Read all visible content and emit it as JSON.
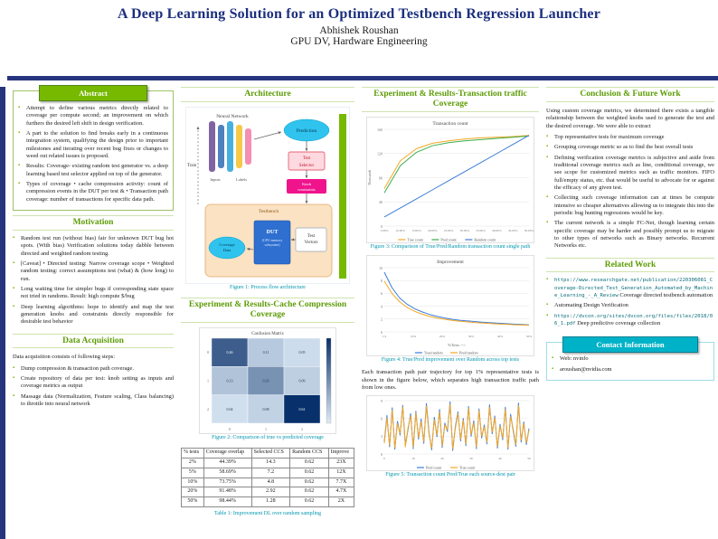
{
  "header": {
    "title": "A Deep Learning Solution for an Optimized Testbench Regression Launcher",
    "author": "Abhishek Roushan",
    "affiliation": "GPU DV, Hardware Engineering"
  },
  "colors": {
    "accent_green": "#76b900",
    "navy": "#27357e",
    "teal": "#00b2c8",
    "caption_teal": "#0096ae"
  },
  "abstract": {
    "title": "Abstract",
    "items": [
      "Attempt to define various metrics directly related to coverage per compute second; an improvement on which furthers the desired left shift in design verification.",
      "A part to the solution to find breaks early in a continuous integration system, qualifying the design prior to important milestones and iterating over recent bug fixes or changes to weed out related issues is proposed.",
      "Results: Coverage- existing random test generator vs. a deep learning based test selector applied on top of the generator.",
      "Types of coverage • cache compression activity: count of compression events in the DUT per test & • Transaction path coverage: number of transactions for specific data path."
    ]
  },
  "motivation": {
    "title": "Motivation",
    "items": [
      "Random test run (without bias) fair for unknown DUT bug hot spots. (With bias) Verification solutions today dabble between directed and weighted random testing.",
      "[Caveat] • Directed testing: Narrow coverage scope • Weighted random testing: correct assumptions test (what) & (how long) to run.",
      "Long waiting time for simpler bugs if corresponding state space not tried in randoms. Result: high compute $/bug",
      "Deep learning algorithms: hope to identify and map the test generation knobs and constraints directly responsible for desirable test behavior"
    ]
  },
  "data_acquisition": {
    "title": "Data Acquisition",
    "intro": "Data acquisition consists of following steps:",
    "items": [
      "Dump compression & transaction path coverage.",
      "Create repository of data per test: knob setting as inputs and coverage metrics as output",
      "Massage data (Normalization, Feature scaling, Class balancing) to throttle into neural network"
    ]
  },
  "architecture": {
    "title": "Architecture",
    "caption": "Figure 1: Process flow architecture",
    "diagram": {
      "nn_label": "Neural Network",
      "prediction": "Prediction",
      "test_selector_1": "Test",
      "test_selector_2": "Selector",
      "knob_1": "Knob",
      "knob_2": "constraints",
      "train": "Train",
      "testbench": "Testbench",
      "coverage_1": "Coverage",
      "coverage_2": "Data",
      "dut": "DUT",
      "dut_sub1": "(GPU memory",
      "dut_sub2": "subsystem)",
      "vectors_1": "Test",
      "vectors_2": "Vectors",
      "inputs": "Inputs",
      "labels": "Labels"
    }
  },
  "cache_results": {
    "title": "Experiment & Results-Cache Compression Coverage",
    "figure_caption": "Figure 2: Comparison of true vs predicted coverage",
    "table": {
      "caption": "Table 1: Improvement DL over random sampling",
      "headers": [
        "% tests",
        "Coverage overlap",
        "Selected CCS",
        "Random CCS",
        "Improve"
      ],
      "rows": [
        [
          "2%",
          "44.39%",
          "14.3",
          "0.62",
          "23X"
        ],
        [
          "5%",
          "58.69%",
          "7.2",
          "0.62",
          "12X"
        ],
        [
          "10%",
          "73.75%",
          "4.8",
          "0.62",
          "7.7X"
        ],
        [
          "20%",
          "91.48%",
          "2.92",
          "0.62",
          "4.7X"
        ],
        [
          "50%",
          "98.44%",
          "1.28",
          "0.62",
          "2X"
        ]
      ]
    }
  },
  "transaction_results": {
    "title": "Experiment & Results-Transaction traffic Coverage",
    "fig3_caption": "Figure 3: Comparison of True/Pred/Random transaction count single path",
    "fig4_caption": "Figure 4: True/Pred improvement over Random across top tests",
    "paragraph": "Each transaction path pair trajectory for top 1% representative tests is shown in the figure below, which separates high transaction traffic path from low ones.",
    "fig5_caption": "Figure 5: Transaction count Pred/True each source-dest pair"
  },
  "conclusion": {
    "title": "Conclusion & Future Work",
    "intro": "Using custom coverage metrics, we determined there exists a tangible relationship between the weighted knobs used to generate the test and the desired coverage. We were able to extract",
    "items": [
      "Top representative tests for maximum coverage",
      "Grouping coverage metric so as to find the best overall tests",
      "Defining verification coverage metrics is subjective and aside from traditional coverage metrics such as line, conditional coverage, we see scope for customized metrics such as traffic monitors. FIFO full/empty status, etc. that would be useful to advocate for or against the efficacy of any given test.",
      "Collecting such coverage information can at times be compute intensive so cheaper alternatives allowing us to integrate this into the periodic bug hunting regressions would be key.",
      "The current network is a simple FC-Net, though learning certain specific coverage may be harder and possibly prompt us to migrate to other types of networks such as Binary networks. Recurrent Networks etc."
    ]
  },
  "related_work": {
    "title": "Related Work",
    "items": [
      {
        "link": "https://www.researchgate.net/publication/220306081_Coverage-Directed_Test_Generation_Automated_by_Machine_Learning_-_A_Review",
        "text": "Coverage directed testbench automation"
      },
      {
        "link": "",
        "text": "Automating Design Verification"
      },
      {
        "link": "https://dvcon.org/sites/dvcon.org/files/files/2018/06_1.pdf",
        "text": "Deep predictive coverage collection"
      }
    ]
  },
  "contact": {
    "title": "Contact Information",
    "items": [
      "Web: nvinfo",
      "aroushan@nvidia.com"
    ]
  },
  "chart_data": [
    {
      "id": "fig2",
      "type": "heatmap",
      "title": "Confusion Matrix",
      "x_ticks": [
        "0",
        "1",
        "2"
      ],
      "y_ticks": [
        "0",
        "1",
        "2"
      ],
      "values": [
        [
          0.46,
          0.11,
          0.05
        ],
        [
          0.13,
          0.29,
          0.09
        ],
        [
          0.04,
          0.08,
          0.61
        ]
      ]
    },
    {
      "id": "fig3",
      "type": "line",
      "title": "Transaction count",
      "ylabel": "Thousands",
      "ymax": 160,
      "yticks": 4,
      "x_ticks": [
        "5.00%",
        "10.00%",
        "15.00%",
        "20.00%",
        "25.00%",
        "30.00%",
        "35.00%",
        "40.00%",
        "45.00%",
        "50.00%"
      ],
      "legend": true,
      "series": [
        {
          "name": "True count",
          "color": "#f5a623",
          "values": [
            62,
            108,
            128,
            137,
            141,
            144,
            146,
            147,
            148,
            150
          ]
        },
        {
          "name": "Pred count",
          "color": "#3cae4c",
          "values": [
            55,
            100,
            122,
            133,
            138,
            141,
            143,
            145,
            147,
            149
          ]
        },
        {
          "name": "Random count",
          "color": "#3b7dd8",
          "values": [
            15,
            30,
            45,
            60,
            75,
            90,
            105,
            120,
            135,
            150
          ]
        }
      ]
    },
    {
      "id": "fig4",
      "type": "line",
      "title": "Improvement",
      "xlabel": "%Tests -->",
      "ymax": 10,
      "yticks": 5,
      "x_ticks": [
        "1%",
        "10%",
        "20%",
        "30%",
        "40%",
        "50%"
      ],
      "legend": true,
      "series": [
        {
          "name": "True/random",
          "color": "#3b7dd8",
          "values": [
            9.3,
            6.9,
            5.3,
            4.3,
            3.6,
            3.1,
            2.7,
            2.4,
            2.15,
            1.95,
            1.8,
            1.7,
            1.6,
            1.5,
            1.42,
            1.35,
            1.28,
            1.22,
            1.17,
            1.1
          ]
        },
        {
          "name": "Pred/random",
          "color": "#f5a623",
          "values": [
            7.9,
            6.0,
            4.7,
            3.8,
            3.2,
            2.75,
            2.4,
            2.15,
            1.95,
            1.78,
            1.65,
            1.55,
            1.45,
            1.38,
            1.3,
            1.24,
            1.18,
            1.12,
            1.08,
            1.04
          ]
        }
      ]
    },
    {
      "id": "fig5",
      "type": "line",
      "ymax": 9,
      "yticks": 3,
      "x_ticks": [
        "0",
        "10",
        "20",
        "30",
        "40",
        "50"
      ],
      "legend": true,
      "series": [
        {
          "name": "Pred count",
          "color": "#3b7dd8",
          "values": [
            2.1,
            6.5,
            1.2,
            7.8,
            0.8,
            5.5,
            3.2,
            8.2,
            1.5,
            4.1,
            6.8,
            0.9,
            7.2,
            2.5,
            5.9,
            1.8,
            8.5,
            3.6,
            0.7,
            6.2,
            2.9,
            7.5,
            1.1,
            5.2,
            3.8,
            8.8,
            0.6,
            4.6,
            7.1,
            2.2,
            6.0,
            1.4,
            8.0,
            3.0,
            5.6,
            0.9,
            7.6,
            2.7,
            4.9,
            1.7,
            8.3,
            3.4,
            6.4,
            1.0,
            5.0,
            2.4,
            7.9,
            0.8,
            6.7,
            3.9,
            1.3,
            8.6,
            2.0,
            5.4,
            1.6,
            4.3
          ]
        },
        {
          "name": "True count",
          "color": "#f5a623",
          "values": [
            1.8,
            6.1,
            1.5,
            7.4,
            1.1,
            5.1,
            3.5,
            7.9,
            1.2,
            4.4,
            6.4,
            1.2,
            6.9,
            2.8,
            5.5,
            2.1,
            8.1,
            3.3,
            1.0,
            5.8,
            3.2,
            7.1,
            1.4,
            4.9,
            4.1,
            8.4,
            0.9,
            4.3,
            6.8,
            2.5,
            5.7,
            1.7,
            7.7,
            3.3,
            5.2,
            1.2,
            7.3,
            3.0,
            4.6,
            2.0,
            7.9,
            3.7,
            6.1,
            1.3,
            4.7,
            2.7,
            7.5,
            1.1,
            6.3,
            4.2,
            1.6,
            8.2,
            2.3,
            5.1,
            1.9,
            4.0
          ]
        }
      ]
    }
  ]
}
